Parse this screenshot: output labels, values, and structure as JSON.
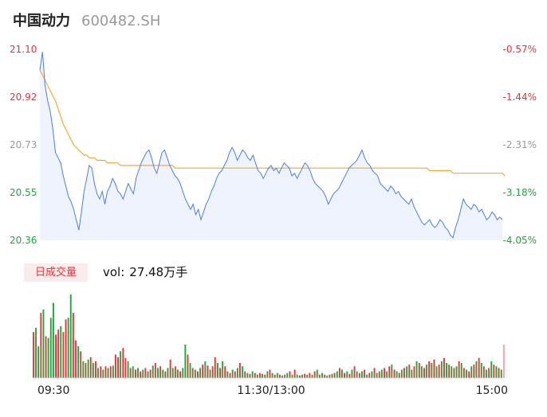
{
  "header": {
    "name": "中国动力",
    "code": "600482.SH"
  },
  "chart_data": {
    "type": "line",
    "price_axis": {
      "min": 20.36,
      "max": 21.1,
      "tick_labels": [
        "21.10",
        "20.92",
        "20.73",
        "20.55",
        "20.36"
      ]
    },
    "pct_axis": {
      "tick_labels": [
        "-0.57%",
        "-1.44%",
        "-2.31%",
        "-3.18%",
        "-4.05%"
      ]
    },
    "x_ticks": [
      "09:30",
      "11:30/13:00",
      "15:00"
    ],
    "price_series": [
      21.02,
      21.09,
      20.96,
      20.9,
      20.86,
      20.79,
      20.7,
      20.68,
      20.66,
      20.61,
      20.57,
      20.53,
      20.51,
      20.48,
      20.44,
      20.4,
      20.47,
      20.55,
      20.6,
      20.65,
      20.64,
      20.58,
      20.54,
      20.52,
      20.55,
      20.5,
      20.55,
      20.57,
      20.6,
      20.58,
      20.55,
      20.54,
      20.52,
      20.55,
      20.58,
      20.56,
      20.54,
      20.6,
      20.63,
      20.66,
      20.68,
      20.7,
      20.71,
      20.68,
      20.64,
      20.62,
      20.66,
      20.7,
      20.71,
      20.68,
      20.65,
      20.63,
      20.61,
      20.6,
      20.58,
      20.55,
      20.52,
      20.5,
      20.48,
      20.5,
      20.46,
      20.48,
      20.44,
      20.47,
      20.5,
      20.52,
      20.55,
      20.57,
      20.6,
      20.62,
      20.63,
      20.65,
      20.67,
      20.7,
      20.72,
      20.7,
      20.67,
      20.69,
      20.71,
      20.7,
      20.68,
      20.67,
      20.69,
      20.66,
      20.63,
      20.62,
      20.6,
      20.62,
      20.64,
      20.65,
      20.63,
      20.64,
      20.62,
      20.64,
      20.66,
      20.65,
      20.64,
      20.61,
      20.62,
      20.6,
      20.62,
      20.64,
      20.66,
      20.65,
      20.63,
      20.6,
      20.58,
      20.57,
      20.56,
      20.55,
      20.53,
      20.5,
      20.52,
      20.54,
      20.55,
      20.56,
      20.58,
      20.6,
      20.62,
      20.64,
      20.65,
      20.66,
      20.67,
      20.69,
      20.71,
      20.68,
      20.66,
      20.65,
      20.63,
      20.62,
      20.61,
      20.58,
      20.57,
      20.56,
      20.55,
      20.57,
      20.56,
      20.54,
      20.55,
      20.53,
      20.52,
      20.51,
      20.5,
      20.52,
      20.49,
      20.47,
      20.45,
      20.43,
      20.42,
      20.43,
      20.44,
      20.42,
      20.41,
      20.42,
      20.44,
      20.43,
      20.41,
      20.4,
      20.38,
      20.37,
      20.41,
      20.44,
      20.48,
      20.52,
      20.5,
      20.49,
      20.48,
      20.5,
      20.49,
      20.47,
      20.48,
      20.46,
      20.44,
      20.45,
      20.47,
      20.46,
      20.44,
      20.45,
      20.44
    ],
    "avg_series": [
      21.02,
      21.0,
      20.98,
      20.96,
      20.94,
      20.92,
      20.9,
      20.87,
      20.84,
      20.81,
      20.79,
      20.77,
      20.75,
      20.73,
      20.72,
      20.71,
      20.7,
      20.69,
      20.69,
      20.68,
      20.68,
      20.68,
      20.67,
      20.67,
      20.67,
      20.67,
      20.66,
      20.66,
      20.66,
      20.66,
      20.66,
      20.65,
      20.65,
      20.65,
      20.65,
      20.65,
      20.65,
      20.65,
      20.65,
      20.65,
      20.65,
      20.65,
      20.65,
      20.65,
      20.65,
      20.65,
      20.65,
      20.65,
      20.65,
      20.65,
      20.65,
      20.65,
      20.64,
      20.64,
      20.64,
      20.64,
      20.64,
      20.64,
      20.64,
      20.64,
      20.64,
      20.64,
      20.64,
      20.64,
      20.64,
      20.64,
      20.64,
      20.64,
      20.64,
      20.64,
      20.64,
      20.64,
      20.64,
      20.64,
      20.64,
      20.64,
      20.64,
      20.64,
      20.64,
      20.64,
      20.64,
      20.64,
      20.64,
      20.64,
      20.64,
      20.64,
      20.64,
      20.64,
      20.64,
      20.64,
      20.64,
      20.64,
      20.64,
      20.64,
      20.64,
      20.64,
      20.64,
      20.64,
      20.64,
      20.64,
      20.64,
      20.64,
      20.64,
      20.64,
      20.64,
      20.64,
      20.64,
      20.64,
      20.64,
      20.64,
      20.64,
      20.64,
      20.64,
      20.64,
      20.64,
      20.64,
      20.64,
      20.64,
      20.64,
      20.64,
      20.64,
      20.64,
      20.64,
      20.64,
      20.64,
      20.64,
      20.64,
      20.64,
      20.64,
      20.64,
      20.64,
      20.64,
      20.64,
      20.64,
      20.64,
      20.64,
      20.64,
      20.64,
      20.64,
      20.64,
      20.64,
      20.64,
      20.64,
      20.64,
      20.64,
      20.64,
      20.64,
      20.64,
      20.64,
      20.64,
      20.63,
      20.63,
      20.63,
      20.63,
      20.63,
      20.63,
      20.63,
      20.63,
      20.63,
      20.62,
      20.62,
      20.62,
      20.62,
      20.62,
      20.62,
      20.62,
      20.62,
      20.62,
      20.62,
      20.62,
      20.62,
      20.62,
      20.62,
      20.62,
      20.62,
      20.62,
      20.62,
      20.62,
      20.62,
      20.61
    ],
    "volume": {
      "tag": "日成交量",
      "label": "vol:",
      "value": "27.48万手",
      "bars": [
        55,
        60,
        38,
        78,
        82,
        50,
        48,
        72,
        90,
        52,
        58,
        62,
        55,
        70,
        72,
        100,
        78,
        45,
        38,
        32,
        20,
        18,
        22,
        25,
        18,
        20,
        12,
        14,
        10,
        14,
        12,
        14,
        15,
        28,
        25,
        32,
        36,
        24,
        20,
        12,
        14,
        10,
        12,
        8,
        10,
        12,
        8,
        10,
        15,
        18,
        12,
        14,
        10,
        8,
        12,
        22,
        12,
        14,
        10,
        8,
        12,
        40,
        28,
        18,
        12,
        10,
        8,
        12,
        16,
        20,
        15,
        10,
        14,
        25,
        18,
        12,
        20,
        14,
        8,
        6,
        10,
        8,
        12,
        18,
        14,
        8,
        6,
        5,
        8,
        6,
        4,
        6,
        5,
        4,
        8,
        10,
        6,
        4,
        6,
        4,
        3,
        4,
        6,
        8,
        4,
        10,
        4,
        3,
        4,
        5,
        4,
        6,
        4,
        8,
        10,
        4,
        6,
        4,
        3,
        4,
        5,
        6,
        8,
        12,
        10,
        6,
        8,
        5,
        10,
        14,
        8,
        6,
        8,
        10,
        4,
        6,
        8,
        12,
        6,
        8,
        10,
        12,
        8,
        14,
        16,
        10,
        8,
        6,
        10,
        12,
        14,
        16,
        10,
        14,
        20,
        18,
        14,
        12,
        16,
        20,
        18,
        22,
        14,
        16,
        20,
        24,
        18,
        16,
        14,
        12,
        14,
        20,
        18,
        12,
        10,
        8,
        14,
        16,
        20,
        24,
        18,
        14,
        10,
        12,
        20,
        16,
        14,
        12,
        10,
        40
      ],
      "bar_colors": [
        "r",
        "g",
        "g",
        "r",
        "g",
        "r",
        "g",
        "g",
        "g",
        "r",
        "r",
        "g",
        "r",
        "r",
        "g",
        "g",
        "r",
        "r",
        "g",
        "r",
        "g",
        "r",
        "g",
        "r",
        "g",
        "r",
        "g",
        "r",
        "g",
        "r",
        "g",
        "r",
        "g",
        "r",
        "r",
        "g",
        "r",
        "r",
        "g",
        "r",
        "g",
        "r",
        "g",
        "r",
        "g",
        "r",
        "g",
        "r",
        "g",
        "r",
        "g",
        "r",
        "g",
        "r",
        "g",
        "r",
        "g",
        "r",
        "g",
        "r",
        "g",
        "g",
        "r",
        "g",
        "r",
        "g",
        "r",
        "g",
        "r",
        "g",
        "r",
        "g",
        "r",
        "r",
        "g",
        "r",
        "g",
        "r",
        "g",
        "r",
        "g",
        "r",
        "g",
        "r",
        "g",
        "r",
        "g",
        "r",
        "g",
        "r",
        "g",
        "r",
        "g",
        "r",
        "g",
        "r",
        "g",
        "r",
        "g",
        "r",
        "g",
        "r",
        "g",
        "r",
        "g",
        "r",
        "g",
        "r",
        "g",
        "r",
        "g",
        "r",
        "g",
        "r",
        "g",
        "r",
        "g",
        "r",
        "g",
        "r",
        "g",
        "r",
        "g",
        "r",
        "g",
        "r",
        "g",
        "r",
        "g",
        "r",
        "g",
        "r",
        "g",
        "r",
        "g",
        "r",
        "g",
        "r",
        "g",
        "r",
        "g",
        "r",
        "g",
        "r",
        "g",
        "r",
        "g",
        "r",
        "g",
        "r",
        "g",
        "r",
        "g",
        "r",
        "g",
        "r",
        "g",
        "r",
        "g",
        "r",
        "g",
        "r",
        "g",
        "r",
        "g",
        "r",
        "g",
        "r",
        "g",
        "r",
        "g",
        "r",
        "g",
        "r",
        "g",
        "r",
        "g",
        "r",
        "g",
        "r",
        "g",
        "r",
        "g",
        "r",
        "g",
        "r",
        "g",
        "r",
        "g",
        "r",
        "g",
        "r"
      ]
    },
    "colors": {
      "price": "#4a7fe8",
      "avg": "#f2a934",
      "up": "#e8343a",
      "down": "#1aaa3a",
      "fill": "#eef3fd",
      "last_bar": "#f4a5a8"
    }
  }
}
